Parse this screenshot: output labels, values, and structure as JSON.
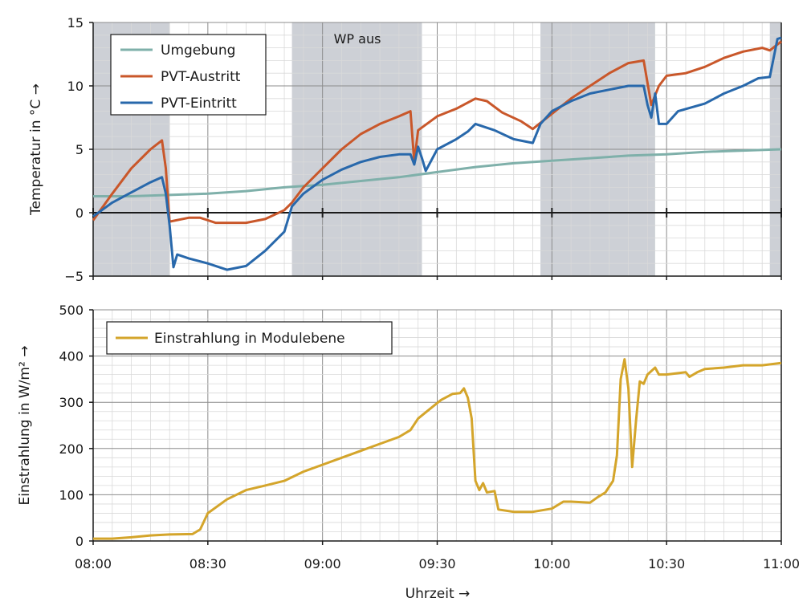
{
  "chart_data": [
    {
      "type": "line",
      "ylabel": "Temperatur in °C →",
      "ylim": [
        -5,
        15
      ],
      "yticks": [
        -5,
        0,
        5,
        10,
        15
      ],
      "xlim": [
        "08:00",
        "11:00"
      ],
      "annotation": "WP aus",
      "shaded_periods": [
        [
          "08:00",
          "08:20"
        ],
        [
          "08:52",
          "09:26"
        ],
        [
          "09:57",
          "10:27"
        ],
        [
          "10:57",
          "11:00"
        ]
      ],
      "grid": true,
      "legend_position": "top-left",
      "series": [
        {
          "name": "Umgebung",
          "color": "#7fb0aa",
          "points": [
            [
              "08:00",
              1.3
            ],
            [
              "08:10",
              1.3
            ],
            [
              "08:20",
              1.4
            ],
            [
              "08:30",
              1.5
            ],
            [
              "08:40",
              1.7
            ],
            [
              "08:50",
              2.0
            ],
            [
              "09:00",
              2.2
            ],
            [
              "09:10",
              2.5
            ],
            [
              "09:20",
              2.8
            ],
            [
              "09:30",
              3.2
            ],
            [
              "09:40",
              3.6
            ],
            [
              "09:50",
              3.9
            ],
            [
              "10:00",
              4.1
            ],
            [
              "10:10",
              4.3
            ],
            [
              "10:20",
              4.5
            ],
            [
              "10:30",
              4.6
            ],
            [
              "10:40",
              4.8
            ],
            [
              "10:50",
              4.9
            ],
            [
              "11:00",
              5.0
            ]
          ]
        },
        {
          "name": "PVT-Austritt",
          "color": "#c9572a",
          "points": [
            [
              "08:00",
              -0.6
            ],
            [
              "08:05",
              1.5
            ],
            [
              "08:10",
              3.5
            ],
            [
              "08:15",
              5.0
            ],
            [
              "08:18",
              5.7
            ],
            [
              "08:19",
              3.5
            ],
            [
              "08:20",
              -0.7
            ],
            [
              "08:25",
              -0.4
            ],
            [
              "08:28",
              -0.4
            ],
            [
              "08:32",
              -0.8
            ],
            [
              "08:40",
              -0.8
            ],
            [
              "08:45",
              -0.5
            ],
            [
              "08:50",
              0.2
            ],
            [
              "08:52",
              0.8
            ],
            [
              "08:55",
              2.0
            ],
            [
              "09:00",
              3.5
            ],
            [
              "09:05",
              5.0
            ],
            [
              "09:10",
              6.2
            ],
            [
              "09:15",
              7.0
            ],
            [
              "09:20",
              7.6
            ],
            [
              "09:23",
              8.0
            ],
            [
              "09:24",
              4.0
            ],
            [
              "09:25",
              6.5
            ],
            [
              "09:30",
              7.6
            ],
            [
              "09:35",
              8.2
            ],
            [
              "09:40",
              9.0
            ],
            [
              "09:43",
              8.8
            ],
            [
              "09:47",
              7.9
            ],
            [
              "09:52",
              7.2
            ],
            [
              "09:55",
              6.6
            ],
            [
              "10:00",
              7.8
            ],
            [
              "10:05",
              9.0
            ],
            [
              "10:10",
              10.0
            ],
            [
              "10:15",
              11.0
            ],
            [
              "10:20",
              11.8
            ],
            [
              "10:24",
              12.0
            ],
            [
              "10:26",
              8.5
            ],
            [
              "10:28",
              10.0
            ],
            [
              "10:30",
              10.8
            ],
            [
              "10:35",
              11.0
            ],
            [
              "10:40",
              11.5
            ],
            [
              "10:45",
              12.2
            ],
            [
              "10:50",
              12.7
            ],
            [
              "10:55",
              13.0
            ],
            [
              "10:57",
              12.8
            ],
            [
              "11:00",
              13.5
            ]
          ]
        },
        {
          "name": "PVT-Eintritt",
          "color": "#2868ab",
          "points": [
            [
              "08:00",
              -0.3
            ],
            [
              "08:05",
              0.8
            ],
            [
              "08:10",
              1.6
            ],
            [
              "08:15",
              2.4
            ],
            [
              "08:18",
              2.8
            ],
            [
              "08:19",
              1.5
            ],
            [
              "08:20",
              -1.0
            ],
            [
              "08:21",
              -4.3
            ],
            [
              "08:22",
              -3.3
            ],
            [
              "08:25",
              -3.6
            ],
            [
              "08:30",
              -4.0
            ],
            [
              "08:35",
              -4.5
            ],
            [
              "08:40",
              -4.2
            ],
            [
              "08:45",
              -3.0
            ],
            [
              "08:50",
              -1.5
            ],
            [
              "08:52",
              0.5
            ],
            [
              "08:55",
              1.5
            ],
            [
              "09:00",
              2.6
            ],
            [
              "09:05",
              3.4
            ],
            [
              "09:10",
              4.0
            ],
            [
              "09:15",
              4.4
            ],
            [
              "09:20",
              4.6
            ],
            [
              "09:23",
              4.6
            ],
            [
              "09:24",
              3.8
            ],
            [
              "09:25",
              5.2
            ],
            [
              "09:26",
              4.3
            ],
            [
              "09:27",
              3.3
            ],
            [
              "09:30",
              5.0
            ],
            [
              "09:35",
              5.8
            ],
            [
              "09:38",
              6.4
            ],
            [
              "09:40",
              7.0
            ],
            [
              "09:45",
              6.5
            ],
            [
              "09:50",
              5.8
            ],
            [
              "09:55",
              5.5
            ],
            [
              "09:57",
              7.0
            ],
            [
              "10:00",
              8.0
            ],
            [
              "10:05",
              8.8
            ],
            [
              "10:10",
              9.4
            ],
            [
              "10:15",
              9.7
            ],
            [
              "10:20",
              10.0
            ],
            [
              "10:24",
              10.0
            ],
            [
              "10:25",
              8.5
            ],
            [
              "10:26",
              7.5
            ],
            [
              "10:27",
              9.4
            ],
            [
              "10:28",
              7.0
            ],
            [
              "10:30",
              7.0
            ],
            [
              "10:33",
              8.0
            ],
            [
              "10:40",
              8.6
            ],
            [
              "10:45",
              9.4
            ],
            [
              "10:50",
              10.0
            ],
            [
              "10:54",
              10.6
            ],
            [
              "10:57",
              10.7
            ],
            [
              "10:59",
              13.7
            ],
            [
              "11:00",
              13.8
            ]
          ]
        }
      ]
    },
    {
      "type": "line",
      "ylabel": "Einstrahlung in W/m² →",
      "xlabel": "Uhrzeit →",
      "ylim": [
        0,
        500
      ],
      "yticks": [
        0,
        100,
        200,
        300,
        400,
        500
      ],
      "xlim": [
        "08:00",
        "11:00"
      ],
      "xticks": [
        "08:00",
        "08:30",
        "09:00",
        "09:30",
        "10:00",
        "10:30",
        "11:00"
      ],
      "grid": true,
      "legend_position": "top-left",
      "series": [
        {
          "name": "Einstrahlung in Modulebene",
          "color": "#d4a52b",
          "points": [
            [
              "08:00",
              5
            ],
            [
              "08:05",
              5
            ],
            [
              "08:10",
              8
            ],
            [
              "08:15",
              12
            ],
            [
              "08:20",
              14
            ],
            [
              "08:26",
              15
            ],
            [
              "08:28",
              25
            ],
            [
              "08:30",
              60
            ],
            [
              "08:35",
              90
            ],
            [
              "08:40",
              110
            ],
            [
              "08:45",
              120
            ],
            [
              "08:50",
              130
            ],
            [
              "08:55",
              150
            ],
            [
              "09:00",
              165
            ],
            [
              "09:05",
              180
            ],
            [
              "09:10",
              195
            ],
            [
              "09:15",
              210
            ],
            [
              "09:20",
              225
            ],
            [
              "09:23",
              240
            ],
            [
              "09:25",
              265
            ],
            [
              "09:28",
              285
            ],
            [
              "09:31",
              305
            ],
            [
              "09:34",
              318
            ],
            [
              "09:36",
              320
            ],
            [
              "09:37",
              330
            ],
            [
              "09:38",
              310
            ],
            [
              "09:39",
              265
            ],
            [
              "09:40",
              130
            ],
            [
              "09:41",
              110
            ],
            [
              "09:42",
              125
            ],
            [
              "09:43",
              105
            ],
            [
              "09:45",
              108
            ],
            [
              "09:46",
              68
            ],
            [
              "09:50",
              63
            ],
            [
              "09:55",
              63
            ],
            [
              "10:00",
              70
            ],
            [
              "10:03",
              85
            ],
            [
              "10:05",
              85
            ],
            [
              "10:10",
              83
            ],
            [
              "10:12",
              95
            ],
            [
              "10:14",
              105
            ],
            [
              "10:16",
              130
            ],
            [
              "10:17",
              185
            ],
            [
              "10:18",
              350
            ],
            [
              "10:19",
              393
            ],
            [
              "10:20",
              330
            ],
            [
              "10:21",
              160
            ],
            [
              "10:22",
              260
            ],
            [
              "10:23",
              345
            ],
            [
              "10:24",
              340
            ],
            [
              "10:25",
              360
            ],
            [
              "10:27",
              375
            ],
            [
              "10:28",
              360
            ],
            [
              "10:30",
              360
            ],
            [
              "10:35",
              365
            ],
            [
              "10:36",
              355
            ],
            [
              "10:38",
              365
            ],
            [
              "10:40",
              372
            ],
            [
              "10:45",
              375
            ],
            [
              "10:50",
              380
            ],
            [
              "10:55",
              380
            ],
            [
              "11:00",
              385
            ]
          ]
        }
      ]
    }
  ]
}
